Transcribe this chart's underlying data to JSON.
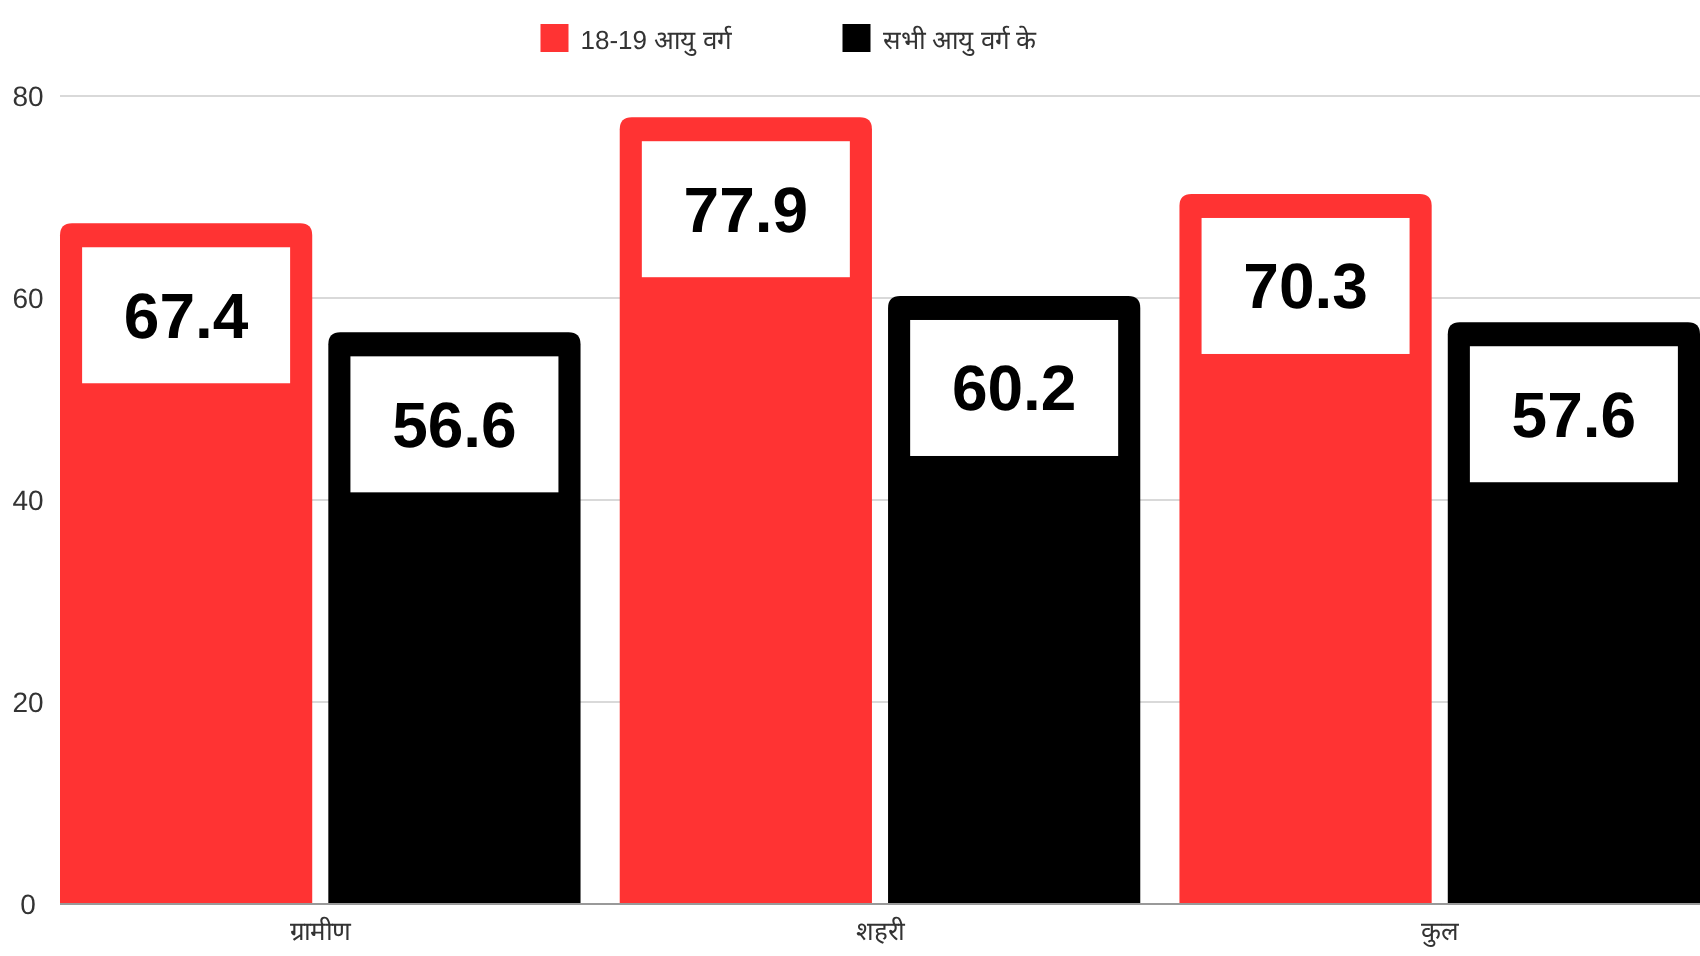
{
  "chart_data": {
    "type": "bar",
    "categories": [
      "ग्रामीण",
      "शहरी",
      "कुल"
    ],
    "series": [
      {
        "name": "18-19 आयु वर्ग",
        "color": "#ff3333",
        "values": [
          67.4,
          77.9,
          70.3
        ]
      },
      {
        "name": "सभी आयु वर्ग के",
        "color": "#000000",
        "values": [
          56.6,
          60.2,
          57.6
        ]
      }
    ],
    "ylim": [
      0,
      80
    ],
    "yticks": [
      0,
      20,
      40,
      60,
      80
    ],
    "grid": "y",
    "legend": "top",
    "data_labels": true
  }
}
